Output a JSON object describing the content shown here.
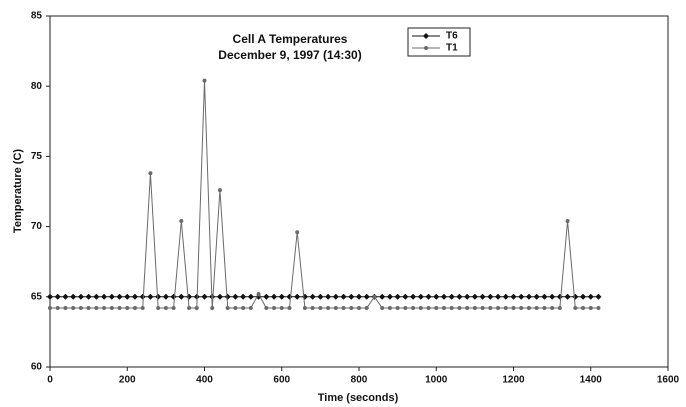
{
  "chart_data": {
    "type": "line",
    "title": "Cell A Temperatures",
    "subtitle": "December 9, 1997 (14:30)",
    "x_label": "Time (seconds)",
    "y_label": "Temperature (C)",
    "x": [
      0,
      20,
      40,
      60,
      80,
      100,
      120,
      140,
      160,
      180,
      200,
      220,
      240,
      260,
      280,
      300,
      320,
      340,
      360,
      380,
      400,
      420,
      440,
      460,
      480,
      500,
      520,
      540,
      560,
      580,
      600,
      620,
      640,
      660,
      680,
      700,
      720,
      740,
      760,
      780,
      800,
      820,
      840,
      860,
      880,
      900,
      920,
      940,
      960,
      980,
      1000,
      1020,
      1040,
      1060,
      1080,
      1100,
      1120,
      1140,
      1160,
      1180,
      1200,
      1220,
      1240,
      1260,
      1280,
      1300,
      1320,
      1340,
      1360,
      1380,
      1400,
      1420
    ],
    "series": [
      {
        "name": "T6",
        "color": "#111111",
        "values": [
          65,
          65,
          65,
          65,
          65,
          65,
          65,
          65,
          65,
          65,
          65,
          65,
          65,
          65,
          65,
          65,
          65,
          65,
          65,
          65,
          65,
          65,
          65,
          65,
          65,
          65,
          65,
          65,
          65,
          65,
          65,
          65,
          65,
          65,
          65,
          65,
          65,
          65,
          65,
          65,
          65,
          65,
          65,
          65,
          65,
          65,
          65,
          65,
          65,
          65,
          65,
          65,
          65,
          65,
          65,
          65,
          65,
          65,
          65,
          65,
          65,
          65,
          65,
          65,
          65,
          65,
          65,
          65,
          65,
          65,
          65,
          65
        ]
      },
      {
        "name": "T1",
        "color": "#6a6a6a",
        "values": [
          64.2,
          64.2,
          64.2,
          64.2,
          64.2,
          64.2,
          64.2,
          64.2,
          64.2,
          64.2,
          64.2,
          64.2,
          64.2,
          73.8,
          64.2,
          64.2,
          64.2,
          70.4,
          64.2,
          64.2,
          80.4,
          64.2,
          72.6,
          64.2,
          64.2,
          64.2,
          64.2,
          65.2,
          64.2,
          64.2,
          64.2,
          64.2,
          69.6,
          64.2,
          64.2,
          64.2,
          64.2,
          64.2,
          64.2,
          64.2,
          64.2,
          64.2,
          65,
          64.2,
          64.2,
          64.2,
          64.2,
          64.2,
          64.2,
          64.2,
          64.2,
          64.2,
          64.2,
          64.2,
          64.2,
          64.2,
          64.2,
          64.2,
          64.2,
          64.2,
          64.2,
          64.2,
          64.2,
          64.2,
          64.2,
          64.2,
          64.2,
          70.4,
          64.2,
          64.2,
          64.2,
          64.2
        ]
      }
    ],
    "xlim": [
      0,
      1600
    ],
    "xticks": [
      0,
      200,
      400,
      600,
      800,
      1000,
      1200,
      1400,
      1600
    ],
    "ylim": [
      60,
      85
    ],
    "yticks": [
      60,
      65,
      70,
      75,
      80,
      85
    ]
  }
}
